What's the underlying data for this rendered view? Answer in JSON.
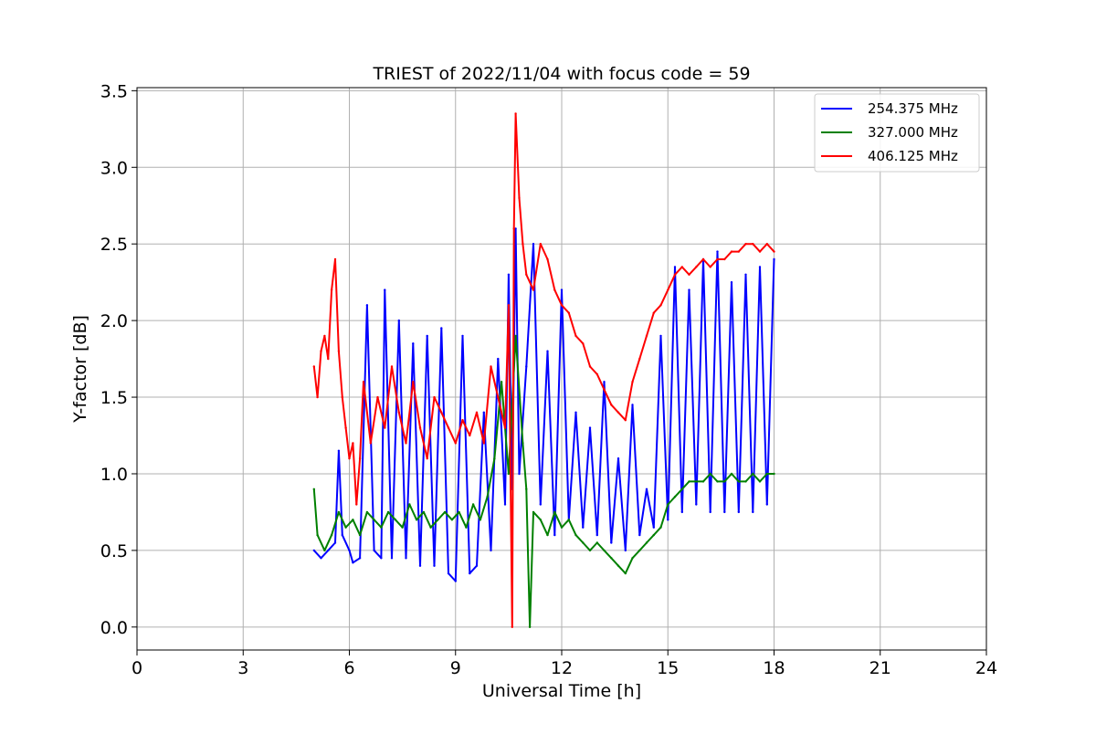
{
  "chart_data": {
    "type": "line",
    "title": "TRIEST of 2022/11/04 with focus code = 59",
    "xlabel": "Universal Time [h]",
    "ylabel": "Y-factor [dB]",
    "xlim": [
      0,
      24
    ],
    "ylim": [
      -0.15,
      3.52
    ],
    "xticks": [
      0,
      3,
      6,
      9,
      12,
      15,
      18,
      21,
      24
    ],
    "xtick_labels": [
      "0",
      "3",
      "6",
      "9",
      "12",
      "15",
      "18",
      "21",
      "24"
    ],
    "yticks": [
      0.0,
      0.5,
      1.0,
      1.5,
      2.0,
      2.5,
      3.0,
      3.5
    ],
    "ytick_labels": [
      "0.0",
      "0.5",
      "1.0",
      "1.5",
      "2.0",
      "2.5",
      "3.0",
      "3.5"
    ],
    "grid": true,
    "legend_position": "top-right",
    "series": [
      {
        "name": "254.375 MHz",
        "color": "#0000ff",
        "x": [
          5.0,
          5.2,
          5.4,
          5.6,
          5.7,
          5.8,
          6.0,
          6.1,
          6.3,
          6.5,
          6.7,
          6.9,
          7.0,
          7.2,
          7.4,
          7.6,
          7.8,
          8.0,
          8.2,
          8.4,
          8.6,
          8.8,
          9.0,
          9.2,
          9.4,
          9.6,
          9.8,
          10.0,
          10.2,
          10.4,
          10.5,
          10.6,
          10.7,
          10.8,
          11.0,
          11.2,
          11.4,
          11.6,
          11.8,
          12.0,
          12.2,
          12.4,
          12.6,
          12.8,
          13.0,
          13.2,
          13.4,
          13.6,
          13.8,
          14.0,
          14.2,
          14.4,
          14.6,
          14.8,
          15.0,
          15.2,
          15.4,
          15.6,
          15.8,
          16.0,
          16.2,
          16.4,
          16.6,
          16.8,
          17.0,
          17.2,
          17.4,
          17.6,
          17.8,
          18.0
        ],
        "y": [
          0.5,
          0.45,
          0.5,
          0.55,
          1.15,
          0.6,
          0.5,
          0.42,
          0.45,
          2.1,
          0.5,
          0.45,
          2.2,
          0.45,
          2.0,
          0.45,
          1.85,
          0.4,
          1.9,
          0.4,
          1.95,
          0.35,
          0.3,
          1.9,
          0.35,
          0.4,
          1.4,
          0.5,
          1.75,
          0.8,
          2.3,
          0.9,
          2.6,
          1.0,
          1.7,
          2.5,
          0.8,
          1.8,
          0.6,
          2.2,
          0.7,
          1.4,
          0.65,
          1.3,
          0.6,
          1.6,
          0.55,
          1.1,
          0.5,
          1.45,
          0.6,
          0.9,
          0.65,
          1.9,
          0.7,
          2.35,
          0.75,
          2.2,
          0.8,
          2.4,
          0.75,
          2.45,
          0.75,
          2.25,
          0.75,
          2.3,
          0.75,
          2.35,
          0.8,
          2.4
        ]
      },
      {
        "name": "327.000 MHz",
        "color": "#008000",
        "x": [
          5.0,
          5.1,
          5.3,
          5.5,
          5.7,
          5.9,
          6.1,
          6.3,
          6.5,
          6.7,
          6.9,
          7.1,
          7.3,
          7.5,
          7.7,
          7.9,
          8.1,
          8.3,
          8.5,
          8.7,
          8.9,
          9.1,
          9.3,
          9.5,
          9.7,
          9.9,
          10.1,
          10.3,
          10.5,
          10.7,
          10.9,
          11.0,
          11.1,
          11.2,
          11.4,
          11.6,
          11.8,
          12.0,
          12.2,
          12.4,
          12.6,
          12.8,
          13.0,
          13.2,
          13.4,
          13.6,
          13.8,
          14.0,
          14.2,
          14.4,
          14.6,
          14.8,
          15.0,
          15.2,
          15.4,
          15.6,
          15.8,
          16.0,
          16.2,
          16.4,
          16.6,
          16.8,
          17.0,
          17.2,
          17.4,
          17.6,
          17.8,
          18.0
        ],
        "y": [
          0.9,
          0.6,
          0.5,
          0.6,
          0.75,
          0.65,
          0.7,
          0.6,
          0.75,
          0.7,
          0.65,
          0.75,
          0.7,
          0.65,
          0.8,
          0.7,
          0.75,
          0.65,
          0.7,
          0.75,
          0.7,
          0.75,
          0.65,
          0.8,
          0.7,
          0.85,
          1.1,
          1.6,
          1.0,
          1.9,
          1.2,
          0.9,
          0.0,
          0.75,
          0.7,
          0.6,
          0.75,
          0.65,
          0.7,
          0.6,
          0.55,
          0.5,
          0.55,
          0.5,
          0.45,
          0.4,
          0.35,
          0.45,
          0.5,
          0.55,
          0.6,
          0.65,
          0.8,
          0.85,
          0.9,
          0.95,
          0.95,
          0.95,
          1.0,
          0.95,
          0.95,
          1.0,
          0.95,
          0.95,
          1.0,
          0.95,
          1.0,
          1.0
        ]
      },
      {
        "name": "406.125 MHz",
        "color": "#ff0000",
        "x": [
          5.0,
          5.1,
          5.2,
          5.3,
          5.4,
          5.5,
          5.6,
          5.7,
          5.8,
          5.9,
          6.0,
          6.1,
          6.2,
          6.3,
          6.4,
          6.6,
          6.8,
          7.0,
          7.2,
          7.4,
          7.6,
          7.8,
          8.0,
          8.2,
          8.4,
          8.6,
          8.8,
          9.0,
          9.2,
          9.4,
          9.6,
          9.8,
          10.0,
          10.2,
          10.4,
          10.5,
          10.6,
          10.65,
          10.7,
          10.8,
          10.9,
          11.0,
          11.2,
          11.4,
          11.6,
          11.8,
          12.0,
          12.2,
          12.4,
          12.6,
          12.8,
          13.0,
          13.2,
          13.4,
          13.6,
          13.8,
          14.0,
          14.2,
          14.4,
          14.6,
          14.8,
          15.0,
          15.2,
          15.4,
          15.6,
          15.8,
          16.0,
          16.2,
          16.4,
          16.6,
          16.8,
          17.0,
          17.2,
          17.4,
          17.6,
          17.8,
          18.0
        ],
        "y": [
          1.7,
          1.5,
          1.8,
          1.9,
          1.75,
          2.2,
          2.4,
          1.8,
          1.5,
          1.3,
          1.1,
          1.2,
          0.8,
          1.1,
          1.6,
          1.2,
          1.5,
          1.3,
          1.7,
          1.4,
          1.2,
          1.6,
          1.3,
          1.1,
          1.5,
          1.4,
          1.3,
          1.2,
          1.35,
          1.25,
          1.4,
          1.2,
          1.7,
          1.5,
          1.3,
          2.1,
          0.0,
          2.6,
          3.35,
          2.8,
          2.5,
          2.3,
          2.2,
          2.5,
          2.4,
          2.2,
          2.1,
          2.05,
          1.9,
          1.85,
          1.7,
          1.65,
          1.55,
          1.45,
          1.4,
          1.35,
          1.6,
          1.75,
          1.9,
          2.05,
          2.1,
          2.2,
          2.3,
          2.35,
          2.3,
          2.35,
          2.4,
          2.35,
          2.4,
          2.4,
          2.45,
          2.45,
          2.5,
          2.5,
          2.45,
          2.5,
          2.45
        ]
      }
    ]
  }
}
